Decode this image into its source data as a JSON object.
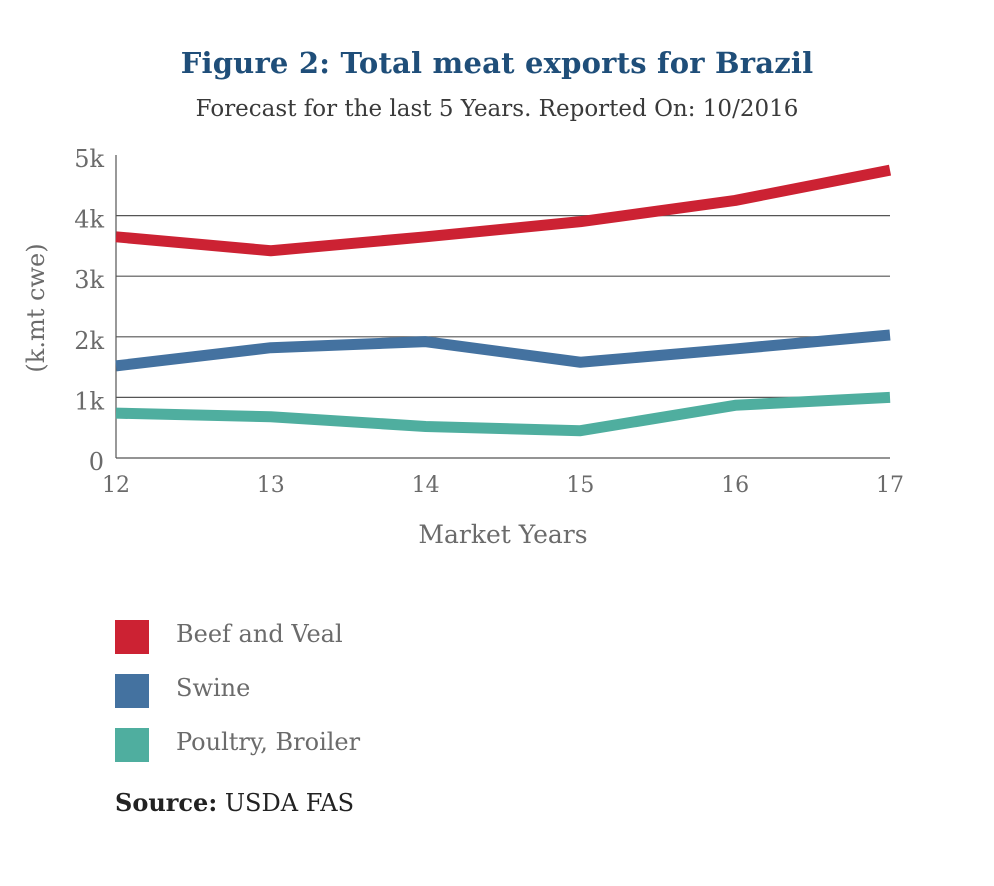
{
  "title": "Figure 2: Total meat exports for Brazil",
  "subtitle": "Forecast for the last 5 Years. Reported On: 10/2016",
  "source": {
    "label": "Source:",
    "value": " USDA FAS"
  },
  "colors": {
    "beef": "#cc2233",
    "swine": "#4472a0",
    "poultry": "#4fae9f",
    "grid": "#555555",
    "axis_text": "#6b6b6b",
    "title": "#1f4e79"
  },
  "chart_data": {
    "type": "line",
    "title": "Figure 2: Total meat exports for Brazil",
    "subtitle": "Forecast for the last 5 Years. Reported On: 10/2016",
    "xlabel": "Market Years",
    "ylabel": "(k.mt cwe)",
    "x": [
      "12",
      "13",
      "14",
      "15",
      "16",
      "17"
    ],
    "ylim": [
      0,
      5000
    ],
    "yticks": [
      0,
      1000,
      2000,
      3000,
      4000,
      5000
    ],
    "ytick_labels": [
      "0",
      "1k",
      "2k",
      "3k",
      "4k",
      "5k"
    ],
    "grid": "horizontal",
    "legend_position": "bottom-left",
    "series": [
      {
        "name": "Beef and Veal",
        "color": "#cc2233",
        "values": [
          3650,
          3420,
          3650,
          3900,
          4250,
          4750
        ]
      },
      {
        "name": "Swine",
        "color": "#4472a0",
        "values": [
          1520,
          1820,
          1920,
          1580,
          1800,
          2030
        ]
      },
      {
        "name": "Poultry, Broiler",
        "color": "#4fae9f",
        "values": [
          740,
          680,
          520,
          450,
          870,
          1000
        ]
      }
    ]
  }
}
